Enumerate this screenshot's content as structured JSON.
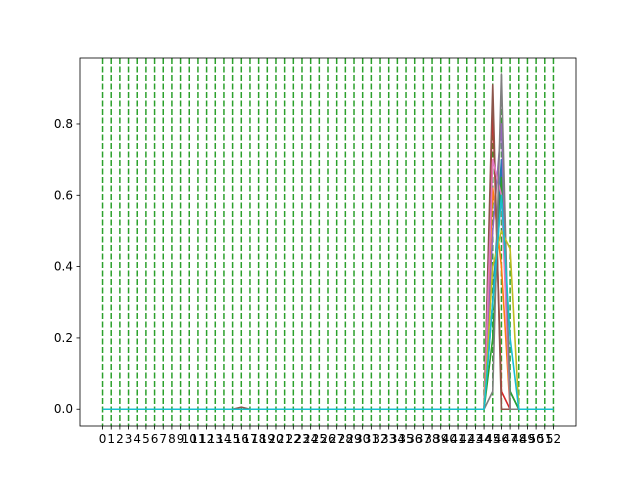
{
  "chart_data": {
    "type": "line",
    "title": "",
    "xlabel": "",
    "ylabel": "",
    "x": [
      0,
      1,
      2,
      3,
      4,
      5,
      6,
      7,
      8,
      9,
      10,
      11,
      12,
      13,
      14,
      15,
      16,
      17,
      18,
      19,
      20,
      21,
      22,
      23,
      24,
      25,
      26,
      27,
      28,
      29,
      30,
      31,
      32,
      33,
      34,
      35,
      36,
      37,
      38,
      39,
      40,
      41,
      42,
      43,
      44,
      45,
      46,
      47,
      48,
      49,
      50,
      51,
      52
    ],
    "x_tick_labels": [
      "0",
      "1",
      "2",
      "3",
      "4",
      "5",
      "6",
      "7",
      "8",
      "9",
      "10",
      "11",
      "12",
      "13",
      "14",
      "15",
      "16",
      "17",
      "18",
      "19",
      "20",
      "21",
      "22",
      "23",
      "24",
      "25",
      "26",
      "27",
      "28",
      "29",
      "30",
      "31",
      "32",
      "33",
      "34",
      "35",
      "36",
      "37",
      "38",
      "39",
      "40",
      "41",
      "42",
      "43",
      "44",
      "45",
      "46",
      "47",
      "48",
      "49",
      "50",
      "51",
      "52"
    ],
    "xlim": [
      -2.6,
      54.6
    ],
    "ylim": [
      -0.047,
      0.985
    ],
    "y_ticks": [
      0.0,
      0.2,
      0.4,
      0.6,
      0.8
    ],
    "y_tick_labels": [
      "0.0",
      "0.2",
      "0.4",
      "0.6",
      "0.8"
    ],
    "vertical_lines": {
      "x": [
        0,
        1,
        2,
        3,
        4,
        5,
        6,
        7,
        8,
        9,
        10,
        11,
        12,
        13,
        14,
        15,
        16,
        17,
        18,
        19,
        20,
        21,
        22,
        23,
        24,
        25,
        26,
        27,
        28,
        29,
        30,
        31,
        32,
        33,
        34,
        35,
        36,
        37,
        38,
        39,
        40,
        41,
        42,
        43,
        44,
        45,
        46,
        47,
        48,
        49,
        50,
        51,
        52
      ],
      "color": "#2ca02c",
      "style": "dashed"
    },
    "grid": false,
    "legend": "none",
    "series": [
      {
        "color": "#1f77b4",
        "peaks": [
          [
            44,
            0.0
          ],
          [
            45,
            0.3
          ],
          [
            46,
            0.7
          ],
          [
            47,
            0.05
          ],
          [
            48,
            0.0
          ]
        ]
      },
      {
        "color": "#ff7f0e",
        "peaks": [
          [
            44,
            0.0
          ],
          [
            45,
            0.62
          ],
          [
            46,
            0.4
          ],
          [
            47,
            0.0
          ]
        ]
      },
      {
        "color": "#2ca02c",
        "peaks": [
          [
            44,
            0.0
          ],
          [
            45,
            0.2
          ],
          [
            46,
            0.65
          ],
          [
            47,
            0.05
          ],
          [
            48,
            0.0
          ]
        ]
      },
      {
        "color": "#d62728",
        "peaks": [
          [
            44,
            0.0
          ],
          [
            45,
            0.85
          ],
          [
            46,
            0.05
          ],
          [
            47,
            0.0
          ]
        ]
      },
      {
        "color": "#9467bd",
        "peaks": [
          [
            44,
            0.0
          ],
          [
            45,
            0.5
          ],
          [
            46,
            0.8
          ],
          [
            47,
            0.0
          ]
        ]
      },
      {
        "color": "#8c564b",
        "peaks": [
          [
            15,
            0.0
          ],
          [
            16,
            0.006
          ],
          [
            17,
            0.0
          ],
          [
            44,
            0.0
          ],
          [
            45,
            0.91
          ],
          [
            46,
            0.0
          ],
          [
            47,
            0.0
          ]
        ]
      },
      {
        "color": "#e377c2",
        "peaks": [
          [
            44,
            0.0
          ],
          [
            45,
            0.7
          ],
          [
            46,
            0.6
          ],
          [
            47,
            0.0
          ]
        ]
      },
      {
        "color": "#7f7f7f",
        "peaks": [
          [
            44,
            0.0
          ],
          [
            45,
            0.05
          ],
          [
            46,
            0.94
          ],
          [
            47,
            0.0
          ]
        ]
      },
      {
        "color": "#bcbd22",
        "peaks": [
          [
            44,
            0.0
          ],
          [
            45,
            0.4
          ],
          [
            46,
            0.5
          ],
          [
            47,
            0.45
          ],
          [
            48,
            0.0
          ]
        ]
      },
      {
        "color": "#17becf",
        "peaks": [
          [
            44,
            0.0
          ],
          [
            45,
            0.3
          ],
          [
            46,
            0.6
          ],
          [
            47,
            0.2
          ],
          [
            48,
            0.0
          ]
        ]
      }
    ]
  }
}
